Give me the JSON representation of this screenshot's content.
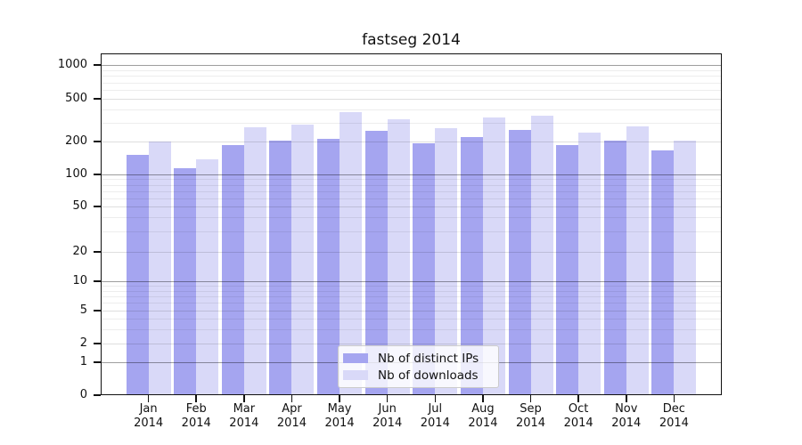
{
  "chart_data": {
    "type": "bar",
    "title": "fastseg 2014",
    "categories": [
      "Jan",
      "Feb",
      "Mar",
      "Apr",
      "May",
      "Jun",
      "Jul",
      "Aug",
      "Sep",
      "Oct",
      "Nov",
      "Dec"
    ],
    "year_label": "2014",
    "series": [
      {
        "name": "Nb of distinct IPs",
        "color": "#a5a5f0",
        "values": [
          150,
          113,
          185,
          205,
          210,
          250,
          193,
          222,
          255,
          185,
          205,
          167
        ]
      },
      {
        "name": "Nb of downloads",
        "color": "#d9d9f8",
        "values": [
          200,
          138,
          270,
          290,
          375,
          322,
          268,
          333,
          348,
          240,
          275,
          205
        ]
      }
    ],
    "yticks": [
      0,
      1,
      2,
      5,
      10,
      20,
      50,
      100,
      200,
      500,
      1000
    ],
    "major_gridline_values": [
      1,
      10,
      100,
      1000
    ],
    "minor_gridlines": [
      3,
      4,
      6,
      7,
      8,
      9,
      30,
      40,
      60,
      70,
      80,
      90,
      300,
      400,
      600,
      700,
      800,
      900
    ],
    "y_scale": "symlog",
    "ylim": [
      0,
      1250
    ],
    "grid": true,
    "legend_position": "lower-center",
    "y_scale_anchors": [
      [
        0,
        444
      ],
      [
        1,
        407
      ],
      [
        2,
        386
      ],
      [
        5,
        349
      ],
      [
        10,
        316
      ],
      [
        20,
        283
      ],
      [
        50,
        232
      ],
      [
        100,
        196
      ],
      [
        200,
        159
      ],
      [
        500,
        111
      ],
      [
        1000,
        73
      ]
    ]
  }
}
